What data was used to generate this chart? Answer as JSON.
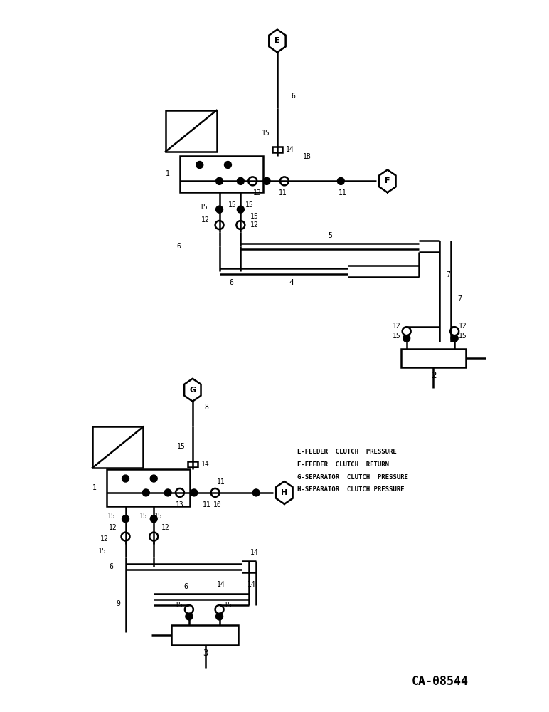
{
  "background_color": "#ffffff",
  "title_text": "CA-08544",
  "legend_lines": [
    "E-FEEDER  CLUTCH  PRESSURE",
    "F-FEEDER  CLUTCH  RETURN",
    "G-SEPARATOR  CLUTCH  PRESSURE",
    "H-SEPARATOR  CLUTCH PRESSURE"
  ],
  "lw_main": 1.8,
  "lw_tube": 2.2,
  "fs_label": 7,
  "black": "#000000"
}
